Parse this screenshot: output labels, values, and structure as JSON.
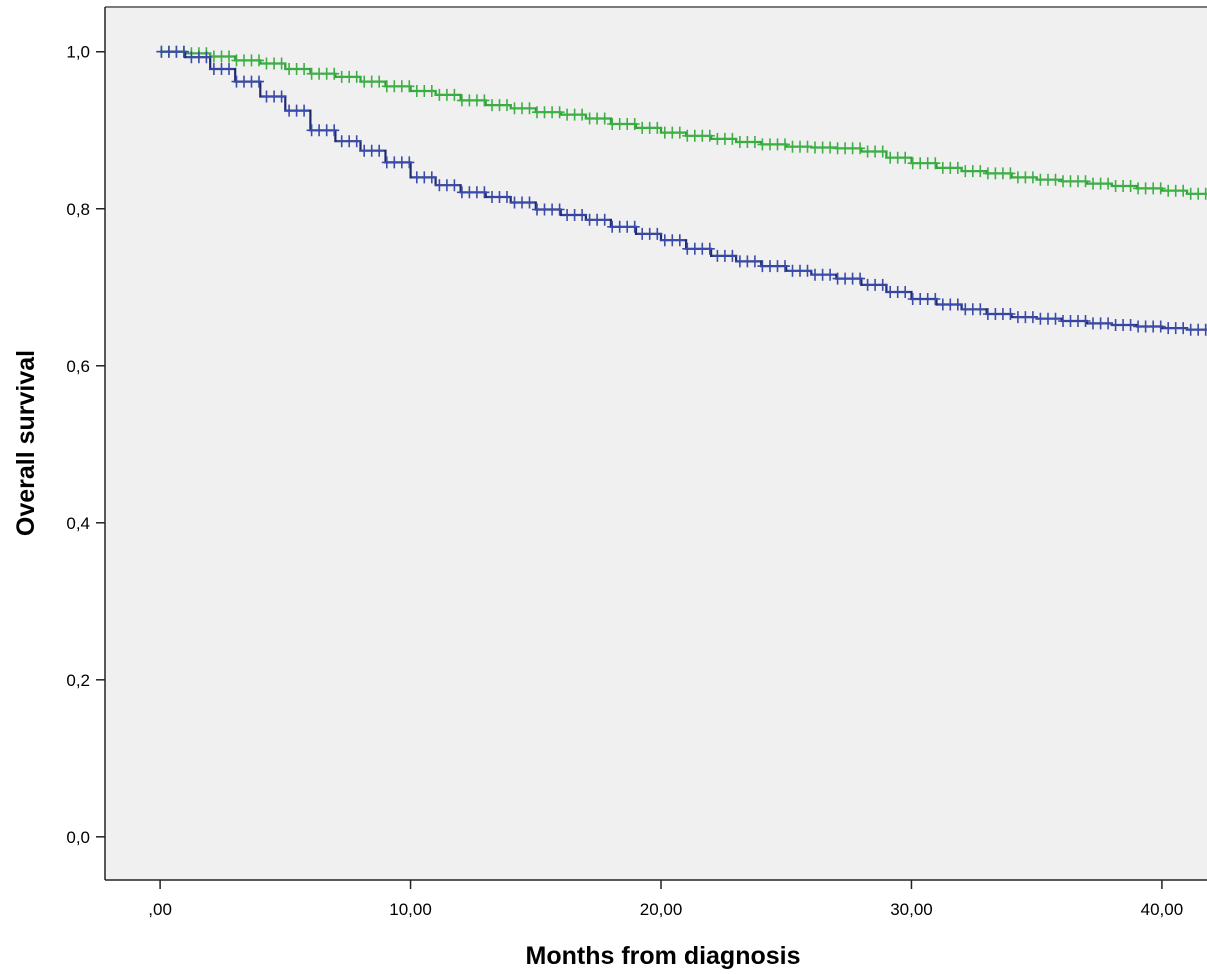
{
  "chart_data": {
    "type": "line",
    "title": "",
    "xlabel": "Months from diagnosis",
    "ylabel": "Overall survival",
    "xlim": [
      -2.2,
      41.8
    ],
    "ylim": [
      -0.055,
      1.057
    ],
    "x_ticks": [
      0,
      10,
      20,
      30,
      40
    ],
    "x_tick_labels": [
      ",00",
      "10,00",
      "20,00",
      "30,00",
      "40,00"
    ],
    "y_ticks": [
      0,
      0.2,
      0.4,
      0.6,
      0.8,
      1.0
    ],
    "y_tick_labels": [
      "0,0",
      "0,2",
      "0,4",
      "0,6",
      "0,8",
      "1,0"
    ],
    "grid": false,
    "legend": "none",
    "plot_background": "#f0f0f0",
    "series": [
      {
        "color": "#3cb043",
        "line_color": "#2e9e3a",
        "censor_marks": true,
        "points": [
          [
            0,
            1.0
          ],
          [
            1,
            0.998
          ],
          [
            2,
            0.994
          ],
          [
            3,
            0.989
          ],
          [
            4,
            0.985
          ],
          [
            5,
            0.978
          ],
          [
            6,
            0.972
          ],
          [
            7,
            0.968
          ],
          [
            8,
            0.962
          ],
          [
            9,
            0.956
          ],
          [
            10,
            0.95
          ],
          [
            11,
            0.945
          ],
          [
            12,
            0.938
          ],
          [
            13,
            0.932
          ],
          [
            14,
            0.928
          ],
          [
            15,
            0.923
          ],
          [
            16,
            0.92
          ],
          [
            17,
            0.915
          ],
          [
            18,
            0.908
          ],
          [
            19,
            0.903
          ],
          [
            20,
            0.897
          ],
          [
            21,
            0.893
          ],
          [
            22,
            0.889
          ],
          [
            23,
            0.885
          ],
          [
            24,
            0.882
          ],
          [
            25,
            0.879
          ],
          [
            26,
            0.878
          ],
          [
            27,
            0.877
          ],
          [
            28,
            0.873
          ],
          [
            29,
            0.865
          ],
          [
            30,
            0.858
          ],
          [
            31,
            0.852
          ],
          [
            32,
            0.848
          ],
          [
            33,
            0.845
          ],
          [
            34,
            0.84
          ],
          [
            35,
            0.837
          ],
          [
            36,
            0.835
          ],
          [
            37,
            0.832
          ],
          [
            38,
            0.829
          ],
          [
            39,
            0.826
          ],
          [
            40,
            0.823
          ],
          [
            41,
            0.819
          ],
          [
            41.8,
            0.818
          ]
        ]
      },
      {
        "color": "#3a4bab",
        "line_color": "#1f2a6e",
        "censor_marks": true,
        "points": [
          [
            0,
            1.0
          ],
          [
            1,
            0.993
          ],
          [
            2,
            0.978
          ],
          [
            3,
            0.962
          ],
          [
            4,
            0.943
          ],
          [
            5,
            0.925
          ],
          [
            6,
            0.9
          ],
          [
            7,
            0.886
          ],
          [
            8,
            0.874
          ],
          [
            9,
            0.859
          ],
          [
            10,
            0.84
          ],
          [
            11,
            0.83
          ],
          [
            12,
            0.821
          ],
          [
            13,
            0.815
          ],
          [
            14,
            0.808
          ],
          [
            15,
            0.799
          ],
          [
            16,
            0.792
          ],
          [
            17,
            0.786
          ],
          [
            18,
            0.777
          ],
          [
            19,
            0.768
          ],
          [
            20,
            0.76
          ],
          [
            21,
            0.749
          ],
          [
            22,
            0.74
          ],
          [
            23,
            0.733
          ],
          [
            24,
            0.727
          ],
          [
            25,
            0.721
          ],
          [
            26,
            0.716
          ],
          [
            27,
            0.711
          ],
          [
            28,
            0.703
          ],
          [
            29,
            0.694
          ],
          [
            30,
            0.685
          ],
          [
            31,
            0.678
          ],
          [
            32,
            0.672
          ],
          [
            33,
            0.666
          ],
          [
            34,
            0.662
          ],
          [
            35,
            0.66
          ],
          [
            36,
            0.657
          ],
          [
            37,
            0.654
          ],
          [
            38,
            0.652
          ],
          [
            39,
            0.65
          ],
          [
            40,
            0.648
          ],
          [
            41,
            0.646
          ],
          [
            41.8,
            0.645
          ]
        ]
      }
    ]
  }
}
